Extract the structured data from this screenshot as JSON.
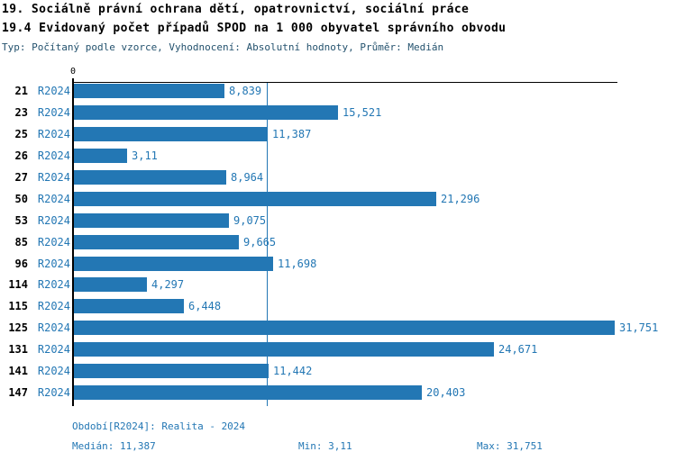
{
  "header": {
    "title": "19. Sociálně právní ochrana dětí, opatrovnictví, sociální práce",
    "subtitle": "19.4 Evidovaný počet případů SPOD na 1 000 obyvatel správního obvodu",
    "meta": "Typ: Počítaný podle vzorce, Vyhodnocení: Absolutní hodnoty, Průměr: Medián"
  },
  "chart_data": {
    "type": "bar",
    "orientation": "horizontal",
    "title": "19.4 Evidovaný počet případů SPOD na 1 000 obyvatel správního obvodu",
    "series_name": "R2024",
    "categories": [
      "21",
      "23",
      "25",
      "26",
      "27",
      "50",
      "53",
      "85",
      "96",
      "114",
      "115",
      "125",
      "131",
      "141",
      "147"
    ],
    "rows": [
      {
        "category": "21",
        "value": 8.839,
        "label": "8,839"
      },
      {
        "category": "23",
        "value": 15.521,
        "label": "15,521"
      },
      {
        "category": "25",
        "value": 11.387,
        "label": "11,387"
      },
      {
        "category": "26",
        "value": 3.11,
        "label": "3,11"
      },
      {
        "category": "27",
        "value": 8.964,
        "label": "8,964"
      },
      {
        "category": "50",
        "value": 21.296,
        "label": "21,296"
      },
      {
        "category": "53",
        "value": 9.075,
        "label": "9,075"
      },
      {
        "category": "85",
        "value": 9.665,
        "label": "9,665"
      },
      {
        "category": "96",
        "value": 11.698,
        "label": "11,698"
      },
      {
        "category": "114",
        "value": 4.297,
        "label": "4,297"
      },
      {
        "category": "115",
        "value": 6.448,
        "label": "6,448"
      },
      {
        "category": "125",
        "value": 31.751,
        "label": "31,751"
      },
      {
        "category": "131",
        "value": 24.671,
        "label": "24,671"
      },
      {
        "category": "141",
        "value": 11.442,
        "label": "11,442"
      },
      {
        "category": "147",
        "value": 20.403,
        "label": "20,403"
      }
    ],
    "x_axis": {
      "min": 0,
      "max": 31.96,
      "min_label": "0",
      "grid": false
    },
    "median_value": 11.387,
    "legend": "none",
    "colors": {
      "bar": "#2377b4",
      "median_line": "#2377b4",
      "value_label": "#2377b4",
      "category_label": "#000000",
      "axis": "#000000"
    }
  },
  "footer": {
    "period": "Období[R2024]: Realita - 2024",
    "median": "Medián: 11,387",
    "min": "Min: 3,11",
    "max": "Max: 31,751"
  }
}
